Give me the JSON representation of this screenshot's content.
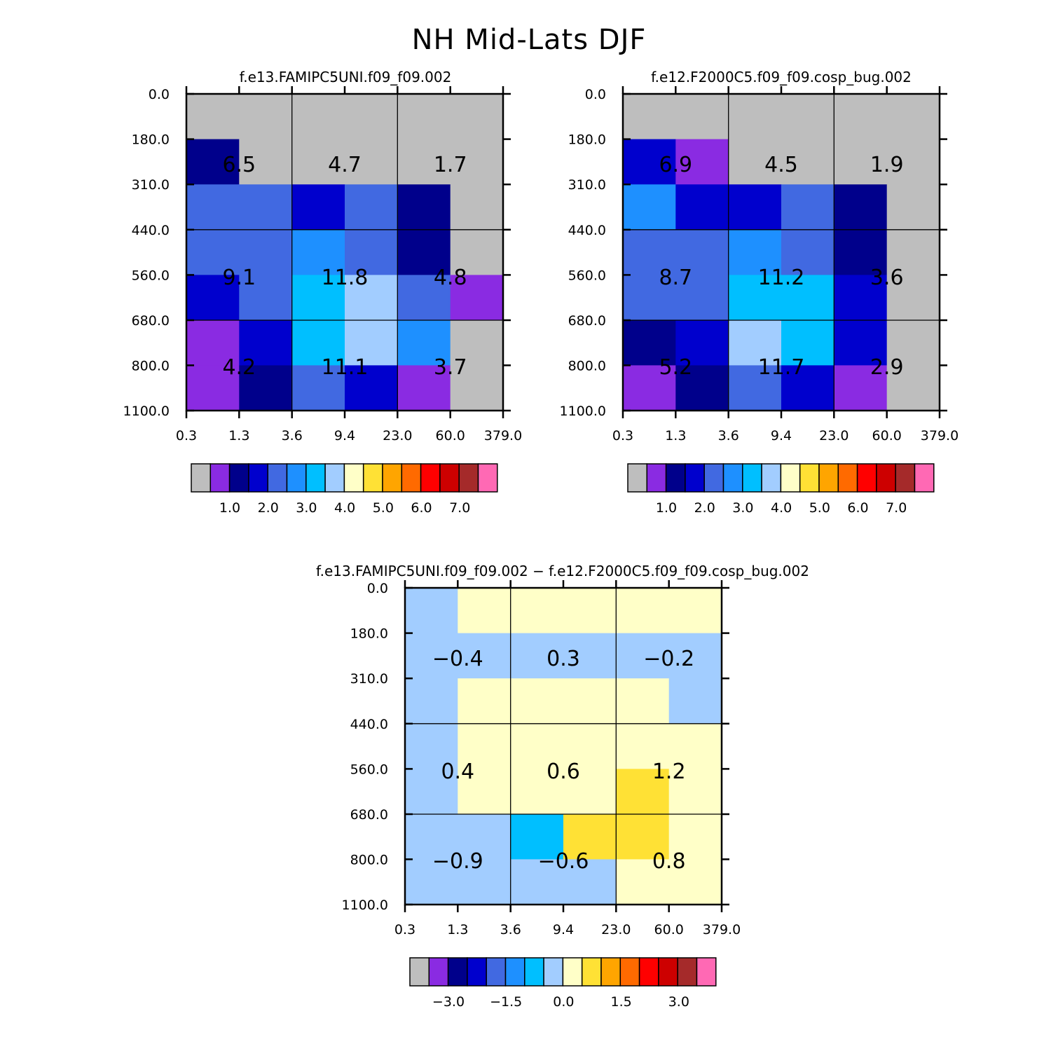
{
  "title": "NH Mid-Lats DJF",
  "chart_data": [
    {
      "type": "heatmap",
      "id": "p1",
      "title": "f.e13.FAMIPC5UNI.f09_f09.002",
      "x_tick_labels": [
        "0.3",
        "1.3",
        "3.6",
        "9.4",
        "23.0",
        "60.0",
        "379.0"
      ],
      "y_tick_labels": [
        "0.0",
        "180.0",
        "310.0",
        "440.0",
        "560.0",
        "680.0",
        "800.0",
        "1100.0"
      ],
      "cells": [
        [
          "gray",
          "gray",
          "gray",
          "gray",
          "gray",
          "gray"
        ],
        [
          "navy",
          "gray",
          "gray",
          "gray",
          "gray",
          "gray"
        ],
        [
          "royal",
          "royal",
          "blue",
          "royal",
          "navy",
          "gray"
        ],
        [
          "royal",
          "royal",
          "dodger",
          "royal",
          "navy",
          "gray"
        ],
        [
          "blue",
          "royal",
          "cyan",
          "lightblue",
          "royal",
          "violet"
        ],
        [
          "violet",
          "blue",
          "cyan",
          "lightblue",
          "dodger",
          "gray"
        ],
        [
          "violet",
          "navy",
          "royal",
          "blue",
          "violet",
          "gray"
        ]
      ],
      "box_values": [
        [
          "6.5",
          "4.7",
          "1.7"
        ],
        [
          "9.1",
          "11.8",
          "4.8"
        ],
        [
          "4.2",
          "11.1",
          "3.7"
        ]
      ],
      "colorbar": {
        "colors": [
          "#BEBEBE",
          "#8A2BE2",
          "#00008B",
          "#0000CD",
          "#4169E1",
          "#1E90FF",
          "#00BFFF",
          "#A2CDFF",
          "#FFFFC8",
          "#FFE135",
          "#FFA500",
          "#FF6A00",
          "#FF0000",
          "#CD0000",
          "#A52A2A",
          "#FF69B4"
        ],
        "labels": [
          "1.0",
          "2.0",
          "3.0",
          "4.0",
          "5.0",
          "6.0",
          "7.0"
        ]
      }
    },
    {
      "type": "heatmap",
      "id": "p2",
      "title": "f.e12.F2000C5.f09_f09.cosp_bug.002",
      "x_tick_labels": [
        "0.3",
        "1.3",
        "3.6",
        "9.4",
        "23.0",
        "60.0",
        "379.0"
      ],
      "y_tick_labels": [
        "0.0",
        "180.0",
        "310.0",
        "440.0",
        "560.0",
        "680.0",
        "800.0",
        "1100.0"
      ],
      "cells": [
        [
          "gray",
          "gray",
          "gray",
          "gray",
          "gray",
          "gray"
        ],
        [
          "blue",
          "violet",
          "gray",
          "gray",
          "gray",
          "gray"
        ],
        [
          "dodger",
          "blue",
          "blue",
          "royal",
          "navy",
          "gray"
        ],
        [
          "royal",
          "royal",
          "dodger",
          "royal",
          "navy",
          "gray"
        ],
        [
          "royal",
          "royal",
          "cyan",
          "cyan",
          "blue",
          "gray"
        ],
        [
          "navy",
          "blue",
          "lightblue",
          "cyan",
          "blue",
          "gray"
        ],
        [
          "violet",
          "navy",
          "royal",
          "blue",
          "violet",
          "gray"
        ]
      ],
      "box_values": [
        [
          "6.9",
          "4.5",
          "1.9"
        ],
        [
          "8.7",
          "11.2",
          "3.6"
        ],
        [
          "5.2",
          "11.7",
          "2.9"
        ]
      ],
      "colorbar": {
        "colors": [
          "#BEBEBE",
          "#8A2BE2",
          "#00008B",
          "#0000CD",
          "#4169E1",
          "#1E90FF",
          "#00BFFF",
          "#A2CDFF",
          "#FFFFC8",
          "#FFE135",
          "#FFA500",
          "#FF6A00",
          "#FF0000",
          "#CD0000",
          "#A52A2A",
          "#FF69B4"
        ],
        "labels": [
          "1.0",
          "2.0",
          "3.0",
          "4.0",
          "5.0",
          "6.0",
          "7.0"
        ]
      }
    },
    {
      "type": "heatmap",
      "id": "p3",
      "title": "f.e13.FAMIPC5UNI.f09_f09.002 − f.e12.F2000C5.f09_f09.cosp_bug.002",
      "x_tick_labels": [
        "0.3",
        "1.3",
        "3.6",
        "9.4",
        "23.0",
        "60.0",
        "379.0"
      ],
      "y_tick_labels": [
        "0.0",
        "180.0",
        "310.0",
        "440.0",
        "560.0",
        "680.0",
        "800.0",
        "1100.0"
      ],
      "cells": [
        [
          "lightblue",
          "cream",
          "cream",
          "cream",
          "cream",
          "cream"
        ],
        [
          "lightblue",
          "lightblue",
          "lightblue",
          "lightblue",
          "lightblue",
          "lightblue"
        ],
        [
          "lightblue",
          "cream",
          "cream",
          "cream",
          "cream",
          "lightblue"
        ],
        [
          "lightblue",
          "cream",
          "cream",
          "cream",
          "cream",
          "cream"
        ],
        [
          "lightblue",
          "cream",
          "cream",
          "cream",
          "yellow",
          "cream"
        ],
        [
          "lightblue",
          "lightblue",
          "cyan",
          "yellow",
          "yellow",
          "cream"
        ],
        [
          "lightblue",
          "lightblue",
          "lightblue",
          "lightblue",
          "cream",
          "cream"
        ]
      ],
      "box_values": [
        [
          "−0.4",
          "0.3",
          "−0.2"
        ],
        [
          "0.4",
          "0.6",
          "1.2"
        ],
        [
          "−0.9",
          "−0.6",
          "0.8"
        ]
      ],
      "colorbar": {
        "colors": [
          "#BEBEBE",
          "#8A2BE2",
          "#00008B",
          "#0000CD",
          "#4169E1",
          "#1E90FF",
          "#00BFFF",
          "#A2CDFF",
          "#FFFFC8",
          "#FFE135",
          "#FFA500",
          "#FF6A00",
          "#FF0000",
          "#CD0000",
          "#A52A2A",
          "#FF69B4"
        ],
        "labels": [
          "−3.0",
          "−1.5",
          "0.0",
          "1.5",
          "3.0"
        ]
      }
    }
  ],
  "palette": {
    "gray": "#BEBEBE",
    "violet": "#8A2BE2",
    "navy": "#00008B",
    "blue": "#0000CD",
    "royal": "#4169E1",
    "dodger": "#1E90FF",
    "cyan": "#00BFFF",
    "lightblue": "#A2CDFF",
    "cream": "#FFFFC8",
    "yellow": "#FFE135"
  }
}
